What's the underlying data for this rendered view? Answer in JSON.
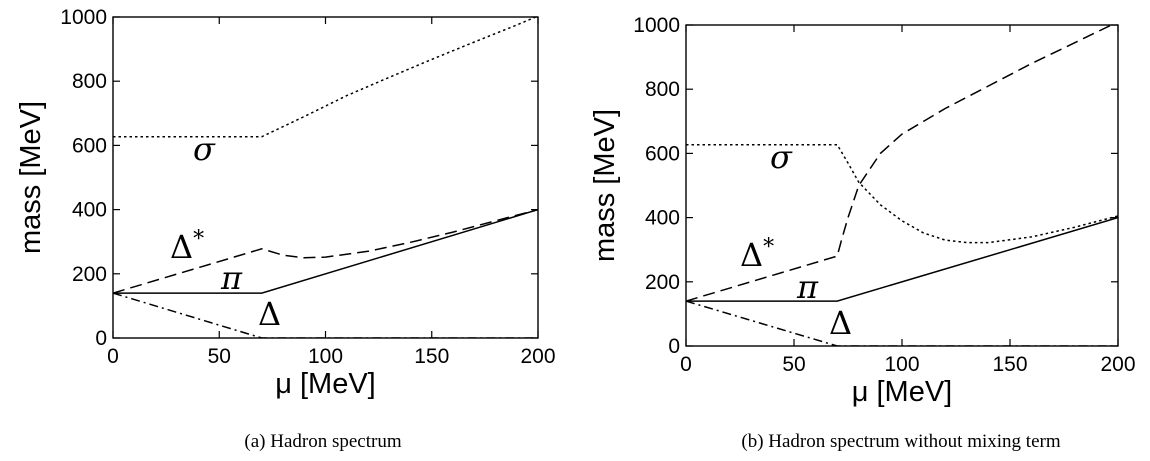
{
  "chart_data": [
    {
      "type": "line",
      "caption": "(a) Hadron spectrum",
      "xlabel": "μ [MeV]",
      "ylabel": "mass [MeV]",
      "xlim": [
        0,
        200
      ],
      "ylim": [
        0,
        1000
      ],
      "xticks": [
        "0",
        "50",
        "100",
        "150",
        "200"
      ],
      "yticks": [
        "0",
        "200",
        "400",
        "600",
        "800",
        "1000"
      ],
      "grid": false,
      "series": [
        {
          "name": "σ",
          "style": "dotted",
          "x": [
            0,
            70,
            90,
            110,
            130,
            150,
            170,
            190,
            200
          ],
          "y": [
            627,
            627,
            690,
            755,
            812,
            868,
            922,
            975,
            1003
          ]
        },
        {
          "name": "Δ*",
          "style": "dashed",
          "x": [
            0,
            70,
            80,
            90,
            100,
            120,
            140,
            160,
            180,
            200
          ],
          "y": [
            140,
            278,
            258,
            250,
            252,
            270,
            298,
            330,
            365,
            400
          ]
        },
        {
          "name": "π",
          "style": "solid",
          "x": [
            0,
            70,
            200
          ],
          "y": [
            140,
            140,
            400
          ]
        },
        {
          "name": "Δ",
          "style": "dashdot",
          "x": [
            0,
            70,
            200
          ],
          "y": [
            140,
            0,
            0
          ]
        }
      ]
    },
    {
      "type": "line",
      "caption": "(b) Hadron spectrum without mixing term",
      "xlabel": "μ [MeV]",
      "ylabel": "mass [MeV]",
      "xlim": [
        0,
        200
      ],
      "ylim": [
        0,
        1000
      ],
      "xticks": [
        "0",
        "50",
        "100",
        "150",
        "200"
      ],
      "yticks": [
        "0",
        "200",
        "400",
        "600",
        "800",
        "1000"
      ],
      "grid": false,
      "series": [
        {
          "name": "σ",
          "style": "dotted",
          "x": [
            0,
            70,
            75,
            80,
            90,
            100,
            110,
            120,
            130,
            140,
            160,
            180,
            200
          ],
          "y": [
            627,
            627,
            570,
            510,
            440,
            390,
            352,
            330,
            322,
            322,
            340,
            370,
            405
          ]
        },
        {
          "name": "Δ*",
          "style": "dashed",
          "x": [
            0,
            70,
            72,
            75,
            80,
            90,
            100,
            120,
            140,
            160,
            180,
            200
          ],
          "y": [
            140,
            280,
            330,
            400,
            500,
            600,
            660,
            740,
            810,
            880,
            945,
            1010
          ]
        },
        {
          "name": "π",
          "style": "solid",
          "x": [
            0,
            70,
            200
          ],
          "y": [
            140,
            140,
            400
          ]
        },
        {
          "name": "Δ",
          "style": "dashdot",
          "x": [
            0,
            70,
            200
          ],
          "y": [
            140,
            0,
            0
          ]
        }
      ]
    }
  ]
}
